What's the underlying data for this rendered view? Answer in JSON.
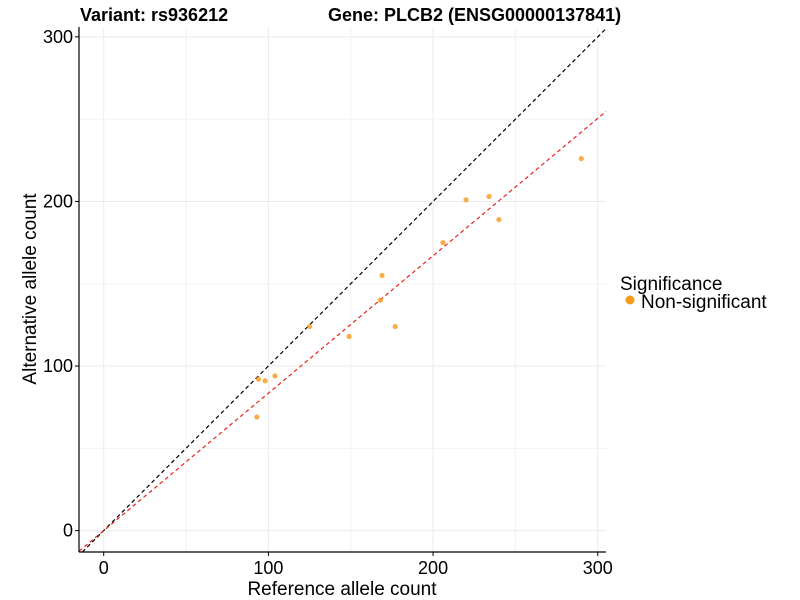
{
  "chart_data": {
    "type": "scatter",
    "title_left": "Variant: rs936212",
    "title_right": "Gene: PLCB2 (ENSG00000137841)",
    "xlabel": "Reference allele count",
    "ylabel": "Alternative allele count",
    "xlim": [
      -15,
      305
    ],
    "ylim": [
      -13,
      306
    ],
    "xticks": [
      0,
      100,
      200,
      300
    ],
    "yticks": [
      0,
      100,
      200,
      300
    ],
    "xtick_labels": [
      "0",
      "100",
      "200",
      "300"
    ],
    "ytick_labels": [
      "0",
      "100",
      "200",
      "300"
    ],
    "grid": true,
    "legend": {
      "title": "Significance",
      "placement": "right",
      "entries": [
        {
          "label": "Non-significant",
          "color": "#f59a1a"
        }
      ]
    },
    "reference_lines": [
      {
        "name": "identity",
        "slope": 1.0,
        "intercept": 0,
        "color": "#000000",
        "dash": true
      },
      {
        "name": "fit",
        "slope": 0.835,
        "intercept": 0,
        "color": "#e8231f",
        "dash": true
      }
    ],
    "series": [
      {
        "name": "Non-significant",
        "color": "#f59a1a",
        "x": [
          93,
          94,
          98,
          104,
          125,
          149,
          168,
          169,
          177,
          206,
          220,
          234,
          240,
          290
        ],
        "y": [
          69,
          92,
          91,
          94,
          124,
          118,
          140,
          155,
          124,
          175,
          201,
          203,
          189,
          226
        ]
      }
    ]
  }
}
